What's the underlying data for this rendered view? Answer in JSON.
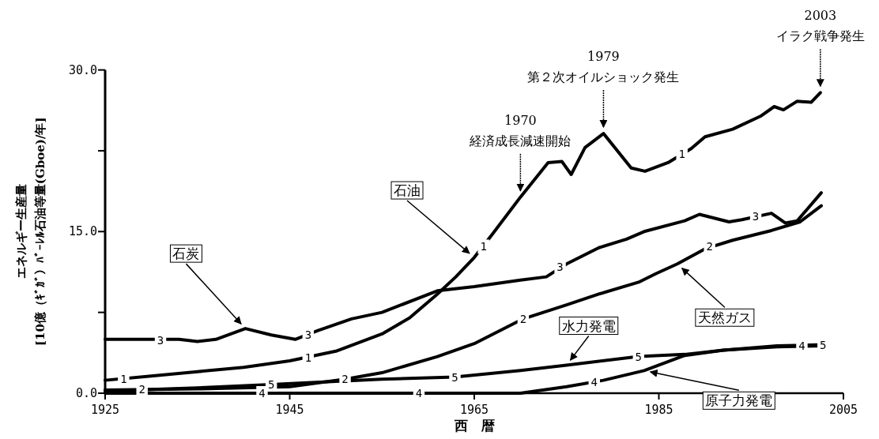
{
  "chart_data": {
    "type": "line",
    "xlabel": "西　暦",
    "ylabel": "エネルギー生産量\n[10億（ｷﾞｶﾞ）ﾊﾞｰﾚﾙ石油等量(Gboe)/年]",
    "xlim": [
      1925,
      2005
    ],
    "xticks": [
      1925,
      1945,
      1965,
      1985,
      2005
    ],
    "ylim": [
      0,
      30
    ],
    "yticks": [
      {
        "value": 0,
        "label": "0.0"
      },
      {
        "value": 7.5,
        "label": null
      },
      {
        "value": 15,
        "label": "15.0"
      },
      {
        "value": 22.5,
        "label": null
      },
      {
        "value": 30,
        "label": "30.0"
      }
    ],
    "line_style": "solid",
    "series": [
      {
        "name": "石油",
        "color": "#000000",
        "x": [
          1925,
          1930,
          1935,
          1940,
          1945,
          1950,
          1955,
          1958,
          1961,
          1963,
          1965,
          1967,
          1970,
          1973,
          1974.5,
          1975.5,
          1977,
          1979,
          1982,
          1983.5,
          1986,
          1988.5,
          1990,
          1993,
          1996,
          1997.5,
          1998.5,
          2000,
          2001.5,
          2002.5
        ],
        "values": [
          1.2,
          1.6,
          2.0,
          2.4,
          3.0,
          3.9,
          5.5,
          7.0,
          9.2,
          10.8,
          12.6,
          14.8,
          18.2,
          21.4,
          21.5,
          20.3,
          22.8,
          24.1,
          20.9,
          20.6,
          21.4,
          22.7,
          23.8,
          24.5,
          25.7,
          26.6,
          26.3,
          27.1,
          27.0,
          27.9
        ]
      },
      {
        "name": "天然ガス",
        "color": "#000000",
        "x": [
          1925,
          1935,
          1945,
          1951,
          1955,
          1961,
          1965,
          1970.3,
          1975,
          1978.5,
          1982.8,
          1984.7,
          1987,
          1990,
          1993,
          1997.2,
          2000.3,
          2002.6
        ],
        "values": [
          0.3,
          0.4,
          0.6,
          1.3,
          1.9,
          3.4,
          4.6,
          6.9,
          8.2,
          9.2,
          10.3,
          11.1,
          12.0,
          13.4,
          14.2,
          15.1,
          15.9,
          17.4
        ]
      },
      {
        "name": "石炭",
        "color": "#000000",
        "x": [
          1925,
          1933,
          1935,
          1937,
          1940.2,
          1943,
          1945.6,
          1948,
          1951.7,
          1955,
          1961,
          1965,
          1970,
          1972.8,
          1975,
          1978.5,
          1981.5,
          1983.4,
          1987.8,
          1989.4,
          1992.6,
          1994,
          1997.2,
          1998.7,
          2000,
          2002.6
        ],
        "values": [
          5.0,
          5.0,
          4.8,
          5.0,
          6.0,
          5.4,
          5.0,
          5.8,
          6.9,
          7.5,
          9.5,
          9.9,
          10.5,
          10.8,
          12.0,
          13.5,
          14.3,
          15.0,
          16.0,
          16.6,
          15.9,
          16.1,
          16.7,
          15.8,
          16.0,
          18.6
        ]
      },
      {
        "name": "原子力発電",
        "color": "#000000",
        "x": [
          1925,
          1955,
          1970,
          1975,
          1979,
          1983.4,
          1987.8,
          1992,
          1997.8,
          2002.8
        ],
        "values": [
          0,
          0,
          0,
          0.6,
          1.2,
          2.1,
          3.5,
          4.0,
          4.3,
          4.4
        ]
      },
      {
        "name": "水力発電",
        "color": "#000000",
        "x": [
          1925,
          1935,
          1943,
          1950,
          1955,
          1962.9,
          1970,
          1975,
          1982.8,
          1987.8,
          1992,
          1997.8,
          2002.8
        ],
        "values": [
          0.2,
          0.5,
          0.8,
          1.1,
          1.3,
          1.5,
          2.1,
          2.6,
          3.4,
          3.6,
          4.0,
          4.4,
          4.5
        ]
      }
    ],
    "annotations": [
      {
        "text": "1970\n経済成長減速開始",
        "x": 1970,
        "y": 18.2
      },
      {
        "text": "1979\n第２次オイルショック発生",
        "x": 1979,
        "y": 24.1
      },
      {
        "text": "2003\nイラク戦争発生",
        "x": 2002.5,
        "y": 27.9
      },
      {
        "text": "1",
        "x": 1927,
        "y": 1.3
      },
      {
        "text": "1",
        "x": 1947,
        "y": 3.3
      },
      {
        "text": "1",
        "x": 1966,
        "y": 13.6
      },
      {
        "text": "1",
        "x": 1987.5,
        "y": 22.2
      },
      {
        "text": "2",
        "x": 1929,
        "y": 0.35
      },
      {
        "text": "2",
        "x": 1951,
        "y": 1.3
      },
      {
        "text": "2",
        "x": 1970.3,
        "y": 6.9
      },
      {
        "text": "2",
        "x": 1990.5,
        "y": 13.6
      },
      {
        "text": "3",
        "x": 1931,
        "y": 4.9
      },
      {
        "text": "3",
        "x": 1947,
        "y": 5.4
      },
      {
        "text": "3",
        "x": 1974.3,
        "y": 11.7
      },
      {
        "text": "3",
        "x": 1995.5,
        "y": 16.4
      },
      {
        "text": "4",
        "x": 1942,
        "y": 0
      },
      {
        "text": "4",
        "x": 1959,
        "y": 0
      },
      {
        "text": "4",
        "x": 1978,
        "y": 1.0
      },
      {
        "text": "4",
        "x": 2000.5,
        "y": 4.4
      },
      {
        "text": "5",
        "x": 1943,
        "y": 0.8
      },
      {
        "text": "5",
        "x": 1962.9,
        "y": 1.5
      },
      {
        "text": "5",
        "x": 1982.8,
        "y": 3.4
      },
      {
        "text": "5",
        "x": 2002.8,
        "y": 4.5
      }
    ]
  }
}
